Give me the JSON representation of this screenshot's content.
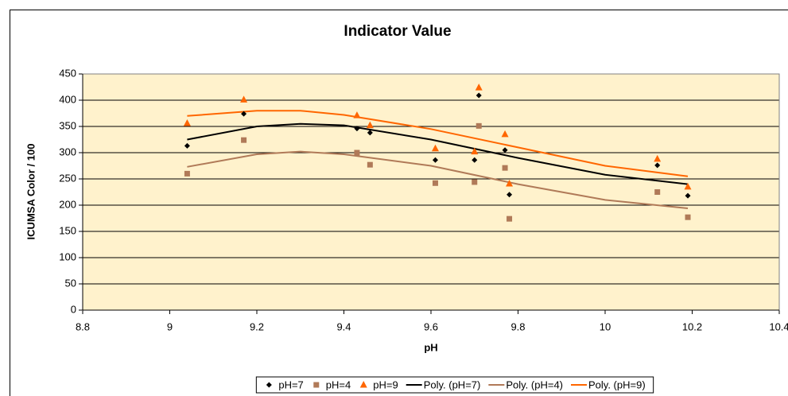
{
  "chart_data": {
    "type": "scatter",
    "title": "Indicator Value",
    "xlabel": "pH",
    "ylabel": "ICUMSA Color / 100",
    "xlim": [
      8.8,
      10.4
    ],
    "xticks": [
      8.8,
      9,
      9.2,
      9.4,
      9.6,
      9.8,
      10,
      10.2,
      10.4
    ],
    "ylim": [
      0,
      450
    ],
    "yticks": [
      0,
      50,
      100,
      150,
      200,
      250,
      300,
      350,
      400,
      450
    ],
    "grid": true,
    "legend": "bottom",
    "series": [
      {
        "name": "pH=7",
        "kind": "scatter",
        "marker": "diamond",
        "color": "#000000",
        "x": [
          9.04,
          9.17,
          9.43,
          9.46,
          9.61,
          9.7,
          9.71,
          9.77,
          9.78,
          10.12,
          10.19
        ],
        "values": [
          313,
          374,
          346,
          338,
          286,
          286,
          409,
          305,
          220,
          276,
          218
        ]
      },
      {
        "name": "pH=4",
        "kind": "scatter",
        "marker": "square",
        "color": "#b07a58",
        "x": [
          9.04,
          9.17,
          9.43,
          9.46,
          9.61,
          9.7,
          9.71,
          9.77,
          9.78,
          10.12,
          10.19
        ],
        "values": [
          260,
          324,
          300,
          277,
          242,
          244,
          351,
          271,
          174,
          225,
          177
        ]
      },
      {
        "name": "pH=9",
        "kind": "scatter",
        "marker": "triangle",
        "color": "#ff6600",
        "x": [
          9.04,
          9.17,
          9.43,
          9.46,
          9.61,
          9.7,
          9.71,
          9.77,
          9.78,
          10.12,
          10.19
        ],
        "values": [
          356,
          401,
          371,
          352,
          308,
          302,
          424,
          335,
          241,
          288,
          235
        ]
      },
      {
        "name": "Poly. (pH=7)",
        "kind": "line",
        "color": "#000000",
        "x": [
          9.04,
          9.2,
          9.3,
          9.4,
          9.6,
          9.8,
          10.0,
          10.19
        ],
        "values": [
          325,
          350,
          355,
          352,
          325,
          290,
          258,
          240
        ]
      },
      {
        "name": "Poly. (pH=4)",
        "kind": "line",
        "color": "#b07a58",
        "x": [
          9.04,
          9.2,
          9.3,
          9.4,
          9.6,
          9.8,
          10.0,
          10.19
        ],
        "values": [
          273,
          297,
          302,
          297,
          275,
          240,
          210,
          194
        ]
      },
      {
        "name": "Poly. (pH=9)",
        "kind": "line",
        "color": "#ff6600",
        "x": [
          9.04,
          9.2,
          9.3,
          9.4,
          9.6,
          9.8,
          10.0,
          10.19
        ],
        "values": [
          370,
          380,
          380,
          372,
          345,
          310,
          275,
          255
        ]
      }
    ]
  }
}
